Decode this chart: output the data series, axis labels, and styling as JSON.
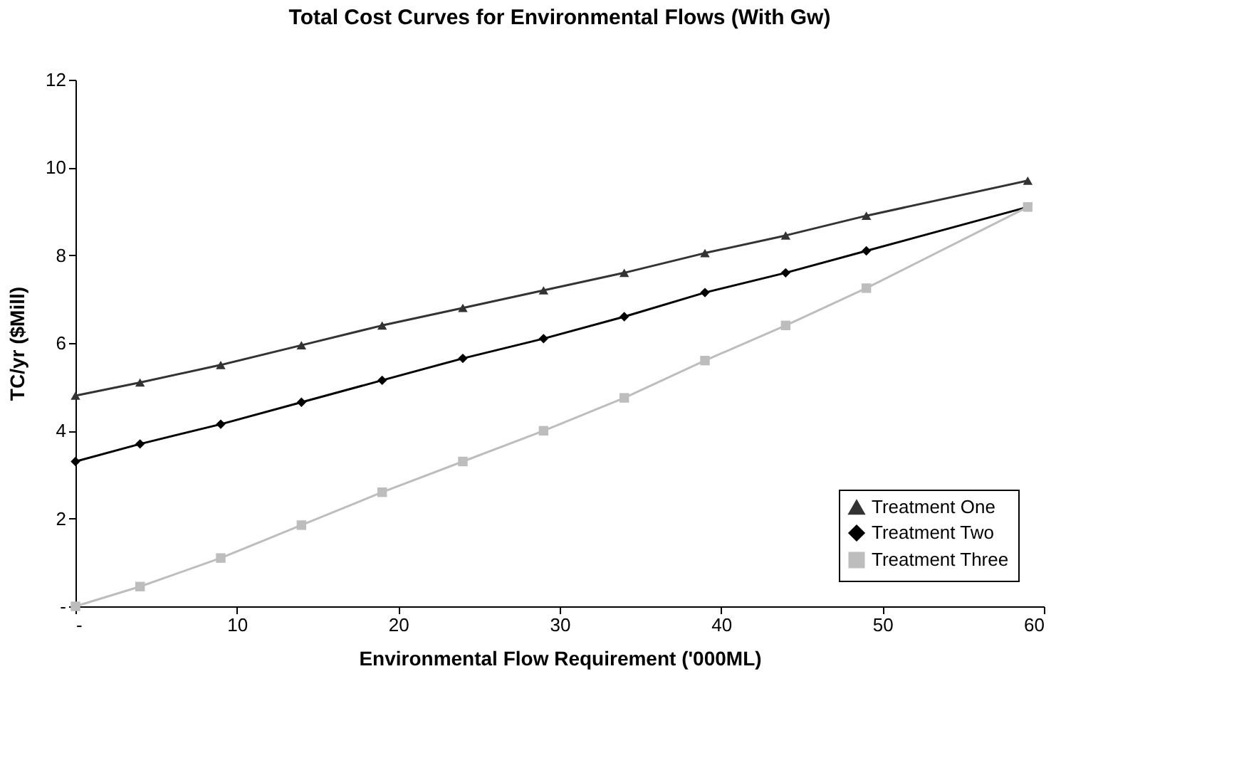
{
  "chart_data": {
    "type": "line",
    "title": "Total Cost Curves for Environmental Flows (With Gw)",
    "xlabel": "Environmental Flow Requirement ('000ML)",
    "ylabel": "TC/yr ($Mill)",
    "x": [
      0,
      4,
      9,
      14,
      19,
      24,
      29,
      34,
      39,
      44,
      49,
      59
    ],
    "series": [
      {
        "name": "Treatment One",
        "color": "#333333",
        "marker": "triangle",
        "values": [
          4.8,
          5.1,
          5.5,
          5.95,
          6.4,
          6.8,
          7.2,
          7.6,
          8.05,
          8.45,
          8.9,
          9.7
        ]
      },
      {
        "name": "Treatment Two",
        "color": "#000000",
        "marker": "diamond",
        "values": [
          3.3,
          3.7,
          4.15,
          4.65,
          5.15,
          5.65,
          6.1,
          6.6,
          7.15,
          7.6,
          8.1,
          9.1
        ]
      },
      {
        "name": "Treatment Three",
        "color": "#bdbdbd",
        "marker": "square",
        "values": [
          0,
          0.45,
          1.1,
          1.85,
          2.6,
          3.3,
          4.0,
          4.75,
          5.6,
          6.4,
          7.25,
          9.1
        ]
      }
    ],
    "xlim": [
      0,
      60
    ],
    "xticks": [
      {
        "value": 0,
        "label": "-"
      },
      10,
      20,
      30,
      40,
      50,
      60
    ],
    "ylim": [
      0,
      12
    ],
    "yticks": [
      {
        "value": 0,
        "label": "-"
      },
      2,
      4,
      6,
      8,
      10,
      12
    ],
    "grid": false,
    "legend": "bottom right",
    "line_style": "solid"
  }
}
